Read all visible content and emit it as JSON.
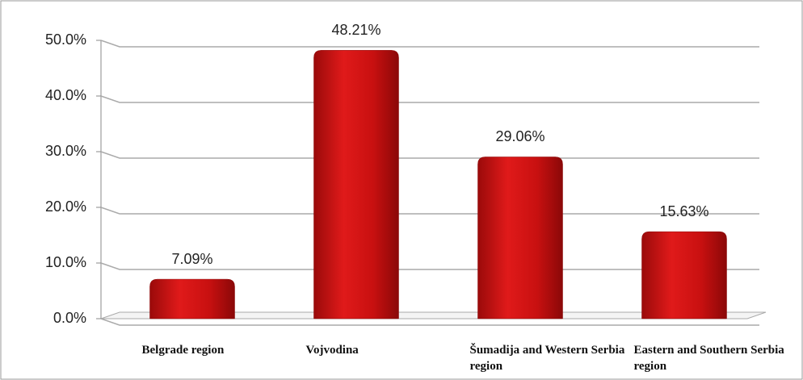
{
  "chart_data": {
    "type": "bar",
    "categories": [
      "Belgrade region",
      "Vojvodina",
      "Šumadija and Western Serbia region",
      "Eastern and Southern Serbia region"
    ],
    "values": [
      7.09,
      48.21,
      29.06,
      15.63
    ],
    "value_labels": [
      "7.09%",
      "48.21%",
      "29.06%",
      "15.63%"
    ],
    "color": "#d01010",
    "ylim": [
      0,
      50
    ],
    "yticks": [
      {
        "value": 0,
        "label": "0.0%"
      },
      {
        "value": 10,
        "label": "10.0%"
      },
      {
        "value": 20,
        "label": "20.0%"
      },
      {
        "value": 30,
        "label": "30.0%"
      },
      {
        "value": 40,
        "label": "40.0%"
      },
      {
        "value": 50,
        "label": "50.0%"
      }
    ],
    "grid": true
  }
}
